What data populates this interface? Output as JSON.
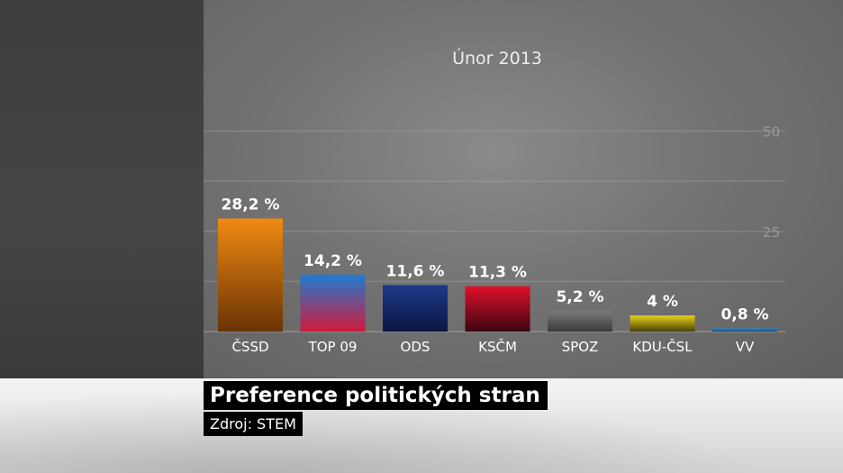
{
  "chart_data": {
    "type": "bar",
    "title": "Únor 2013",
    "categories": [
      "ČSSD",
      "TOP 09",
      "ODS",
      "KSČM",
      "SPOZ",
      "KDU-ČSL",
      "VV"
    ],
    "values": [
      28.2,
      14.2,
      11.6,
      11.3,
      5.2,
      4,
      0.8
    ],
    "value_labels": [
      "28,2 %",
      "14,2 %",
      "11,6 %",
      "11,3 %",
      "5,2 %",
      "4  %",
      "0,8 %"
    ],
    "yticks": [
      "50",
      "25"
    ],
    "ylim": [
      0,
      50
    ],
    "grid": true,
    "colors": [
      [
        "#f08a12",
        "#6a3305"
      ],
      [
        "#1f7bd1",
        "#d01a3a"
      ],
      [
        "#1d3a8a",
        "#0c1540"
      ],
      [
        "#e0102a",
        "#3a0510"
      ],
      [
        "#7a7a7a",
        "#3a3a3a"
      ],
      [
        "#e8d21a",
        "#4a4208"
      ],
      [
        "#2a8ad0",
        "#1a4a7a"
      ]
    ]
  },
  "caption": {
    "title": "Preference politických stran",
    "source": "Zdroj: STEM"
  }
}
